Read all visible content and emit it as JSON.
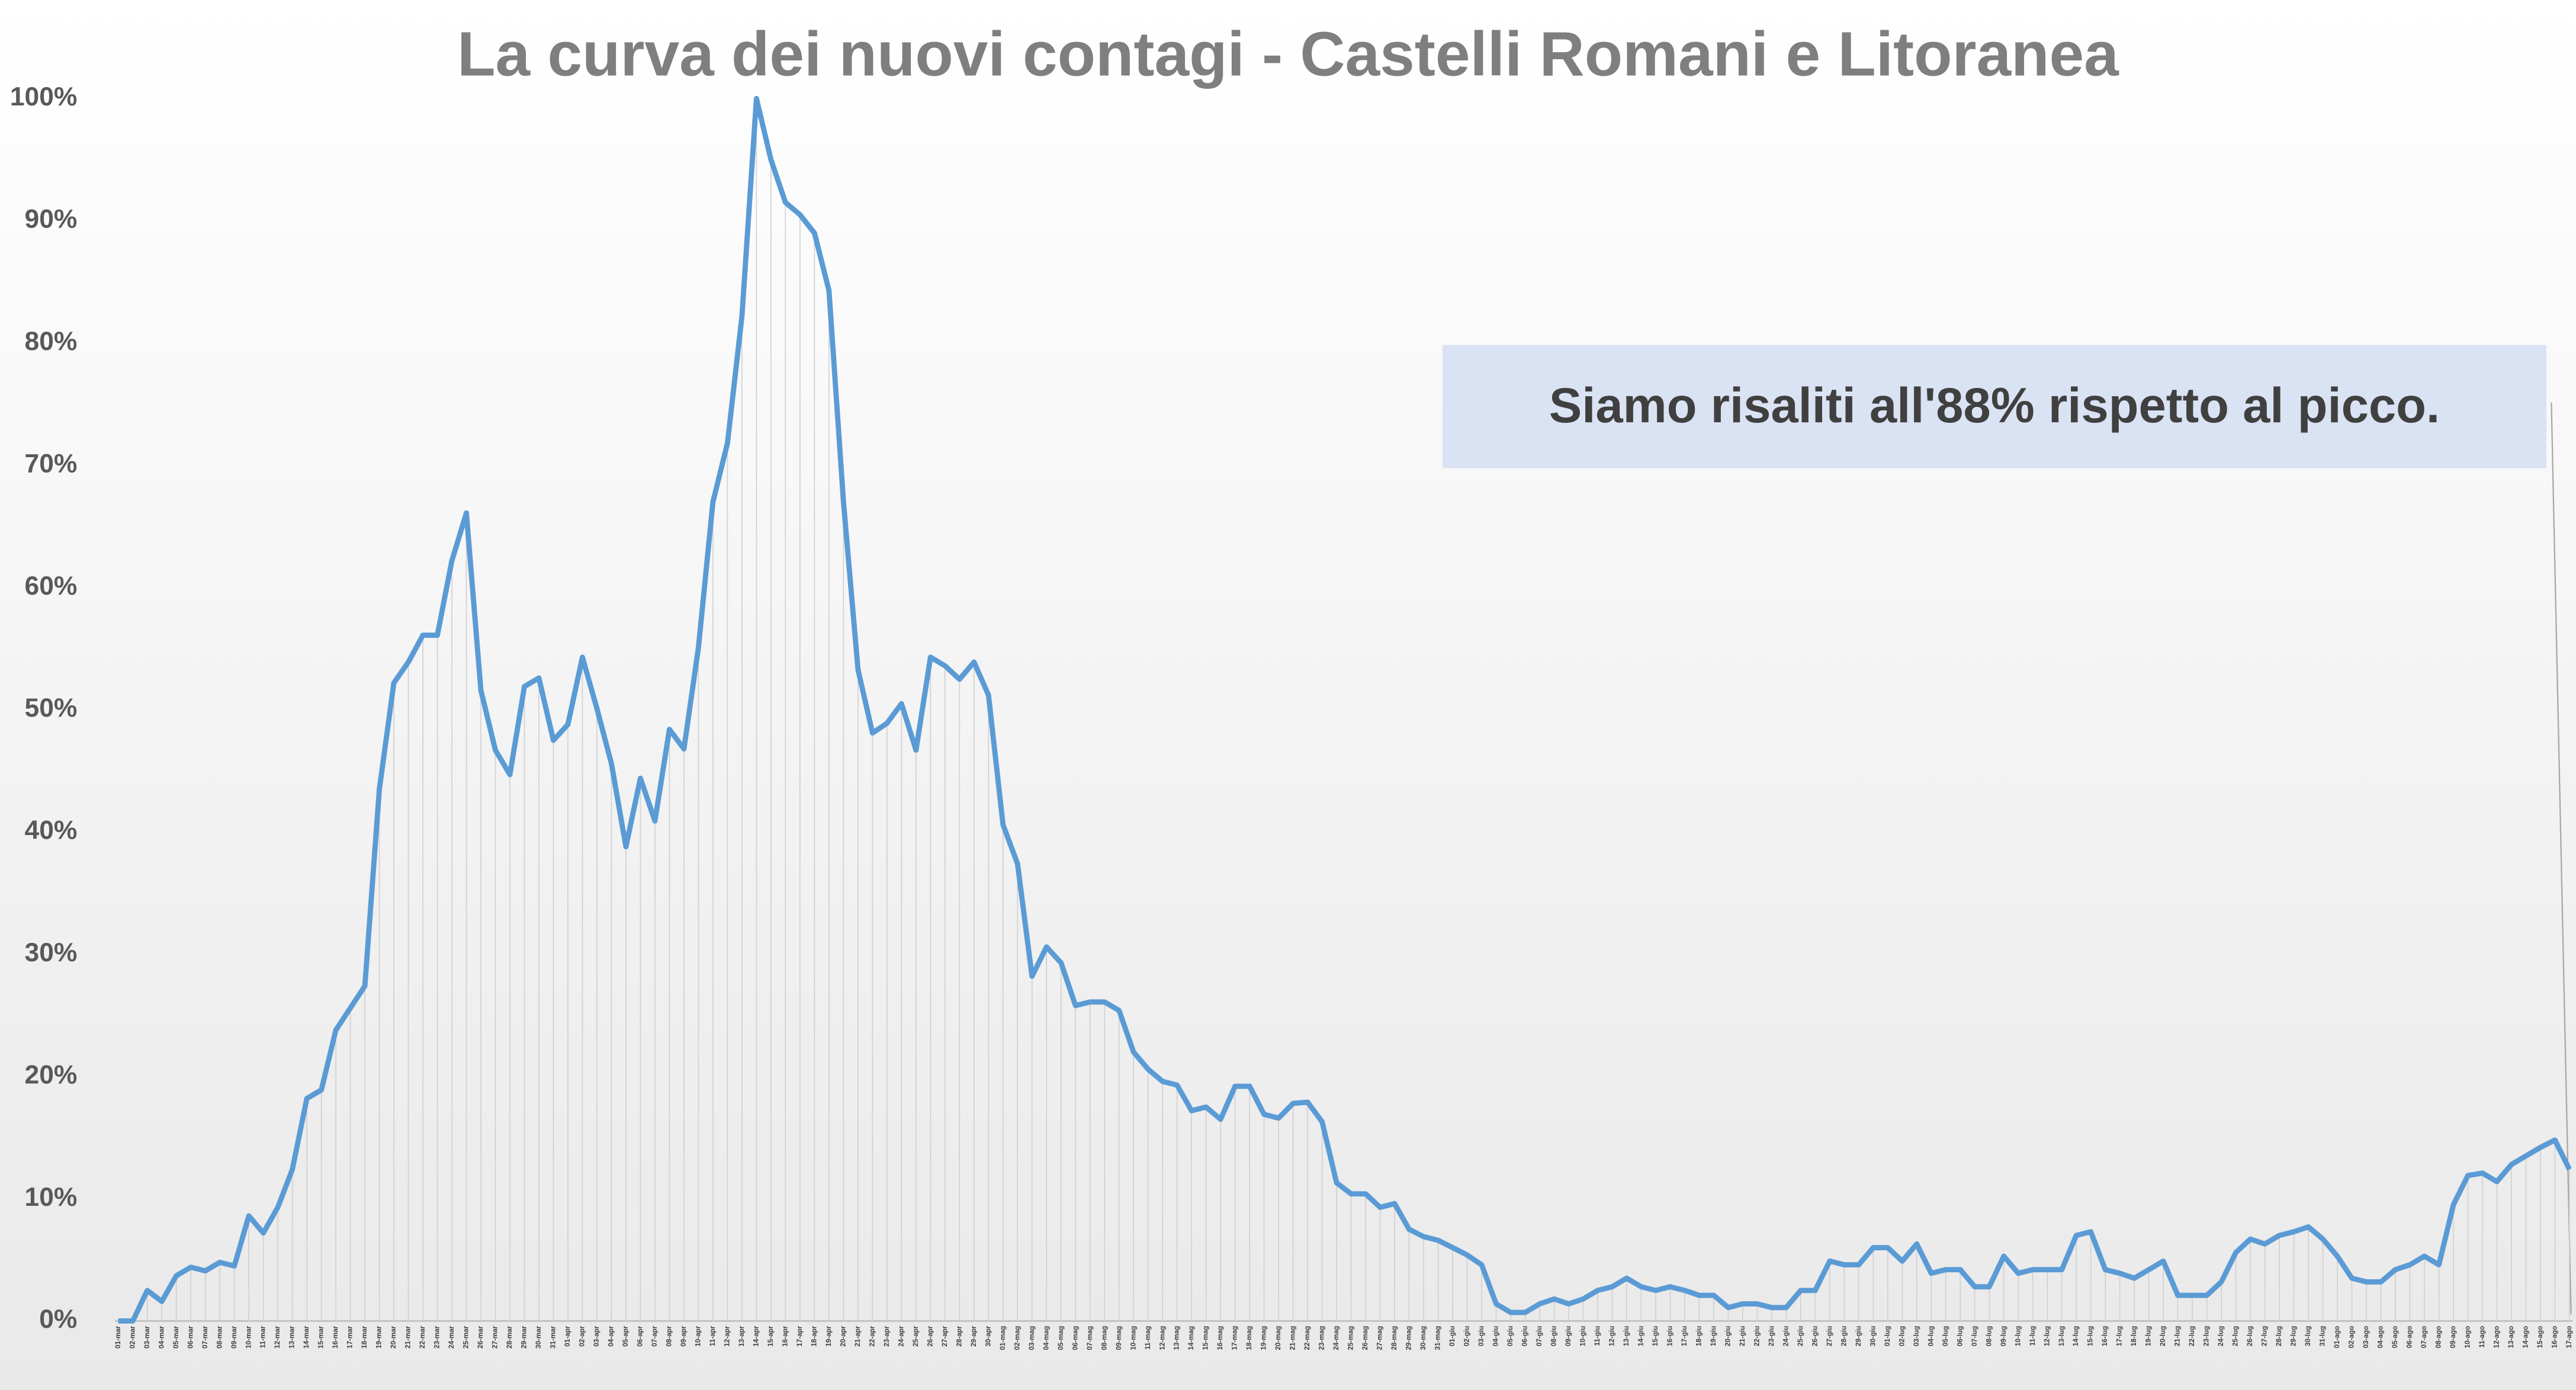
{
  "chart_data": {
    "type": "line",
    "title": "La curva dei nuovi contagi - Castelli Romani e Litoranea",
    "annotation": "Siamo risaliti all'88% rispetto al picco.",
    "categories": [
      "01-mar",
      "02-mar",
      "03-mar",
      "04-mar",
      "05-mar",
      "06-mar",
      "07-mar",
      "08-mar",
      "09-mar",
      "10-mar",
      "11-mar",
      "12-mar",
      "13-mar",
      "14-mar",
      "15-mar",
      "16-mar",
      "17-mar",
      "18-mar",
      "19-mar",
      "20-mar",
      "21-mar",
      "22-mar",
      "23-mar",
      "24-mar",
      "25-mar",
      "26-mar",
      "27-mar",
      "28-mar",
      "29-mar",
      "30-mar",
      "31-mar",
      "01-apr",
      "02-apr",
      "03-apr",
      "04-apr",
      "05-apr",
      "06-apr",
      "07-apr",
      "08-apr",
      "09-apr",
      "10-apr",
      "11-apr",
      "12-apr",
      "13-apr",
      "14-apr",
      "15-apr",
      "16-apr",
      "17-apr",
      "18-apr",
      "19-apr",
      "20-apr",
      "21-apr",
      "22-apr",
      "23-apr",
      "24-apr",
      "25-apr",
      "26-apr",
      "27-apr",
      "28-apr",
      "29-apr",
      "30-apr",
      "01-mag",
      "02-mag",
      "03-mag",
      "04-mag",
      "05-mag",
      "06-mag",
      "07-mag",
      "08-mag",
      "09-mag",
      "10-mag",
      "11-mag",
      "12-mag",
      "13-mag",
      "14-mag",
      "15-mag",
      "16-mag",
      "17-mag",
      "18-mag",
      "19-mag",
      "20-mag",
      "21-mag",
      "22-mag",
      "23-mag",
      "24-mag",
      "25-mag",
      "26-mag",
      "27-mag",
      "28-mag",
      "29-mag",
      "30-mag",
      "31-mag",
      "01-giu",
      "02-giu",
      "03-giu",
      "04-giu",
      "05-giu",
      "06-giu",
      "07-giu",
      "08-giu",
      "09-giu",
      "10-giu",
      "11-giu",
      "12-giu",
      "13-giu",
      "14-giu",
      "15-giu",
      "16-giu",
      "17-giu",
      "18-giu",
      "19-giu",
      "20-giu",
      "21-giu",
      "22-giu",
      "23-giu",
      "24-giu",
      "25-giu",
      "26-giu",
      "27-giu",
      "28-giu",
      "29-giu",
      "30-giu",
      "01-lug",
      "02-lug",
      "03-lug",
      "04-lug",
      "05-lug",
      "06-lug",
      "07-lug",
      "08-lug",
      "09-lug",
      "10-lug",
      "11-lug",
      "12-lug",
      "13-lug",
      "14-lug",
      "15-lug",
      "16-lug",
      "17-lug",
      "18-lug",
      "19-lug",
      "20-lug",
      "21-lug",
      "22-lug",
      "23-lug",
      "24-lug",
      "25-lug",
      "26-lug",
      "27-lug",
      "28-lug",
      "29-lug",
      "30-lug",
      "31-lug",
      "01-ago",
      "02-ago",
      "03-ago",
      "04-ago",
      "05-ago",
      "06-ago",
      "07-ago",
      "08-ago",
      "09-ago",
      "10-ago",
      "11-ago",
      "12-ago",
      "13-ago",
      "14-ago",
      "15-ago",
      "16-ago",
      "17-ago"
    ],
    "series": [
      {
        "color": "#5b9bd5",
        "values": [
          0,
          0,
          2.5,
          1.6,
          3.7,
          4.4,
          4.1,
          4.8,
          4.5,
          8.6,
          7.2,
          9.3,
          12.4,
          18.2,
          18.9,
          23.8,
          25.6,
          27.4,
          43.5,
          52.2,
          53.9,
          56.1,
          56.1,
          62.2,
          66.1,
          51.6,
          46.7,
          44.7,
          51.9,
          52.6,
          47.5,
          48.8,
          54.3,
          50.1,
          45.6,
          38.8,
          44.4,
          40.9,
          48.4,
          46.8,
          55.1,
          67.0,
          71.8,
          82.2,
          100,
          95.0,
          91.5,
          90.5,
          89.0,
          84.3,
          67.0,
          53.3,
          48.1,
          48.9,
          50.5,
          46.7,
          54.3,
          53.6,
          52.5,
          53.9,
          51.2,
          40.6,
          37.4,
          28.2,
          30.6,
          29.3,
          25.8,
          26.1,
          26.1,
          25.4,
          22.0,
          20.6,
          19.6,
          19.3,
          17.2,
          17.5,
          16.5,
          19.2,
          19.2,
          16.9,
          16.6,
          17.8,
          17.9,
          16.3,
          11.3,
          10.4,
          10.4,
          9.3,
          9.6,
          7.5,
          6.9,
          6.6,
          6.0,
          5.4,
          4.6,
          1.4,
          0.7,
          0.7,
          1.4,
          1.8,
          1.4,
          1.8,
          2.5,
          2.8,
          3.5,
          2.8,
          2.5,
          2.8,
          2.5,
          2.1,
          2.1,
          1.1,
          1.4,
          1.4,
          1.1,
          1.1,
          2.5,
          2.5,
          4.9,
          4.6,
          4.6,
          6.0,
          6.0,
          4.9,
          6.3,
          3.9,
          4.2,
          4.2,
          2.8,
          2.8,
          5.3,
          3.9,
          4.2,
          4.2,
          4.2,
          7.0,
          7.3,
          4.2,
          3.9,
          3.5,
          4.2,
          4.9,
          2.1,
          2.1,
          2.1,
          3.2,
          5.6,
          6.7,
          6.3,
          7.0,
          7.3,
          7.7,
          6.7,
          5.3,
          3.5,
          3.2,
          3.2,
          4.2,
          4.6,
          5.3,
          4.6,
          9.5,
          11.9,
          12.1,
          11.4,
          12.8,
          13.5,
          14.2,
          14.8,
          12.4
        ]
      }
    ],
    "ylim": [
      0,
      100
    ],
    "yticks": [
      {
        "value": 0,
        "label": "0%"
      },
      {
        "value": 10,
        "label": "10%"
      },
      {
        "value": 20,
        "label": "20%"
      },
      {
        "value": 30,
        "label": "30%"
      },
      {
        "value": 40,
        "label": "40%"
      },
      {
        "value": 50,
        "label": "50%"
      },
      {
        "value": 60,
        "label": "60%"
      },
      {
        "value": 70,
        "label": "70%"
      },
      {
        "value": 80,
        "label": "80%"
      },
      {
        "value": 90,
        "label": "90%"
      },
      {
        "value": 100,
        "label": "100%"
      }
    ],
    "drop_lines": true
  }
}
